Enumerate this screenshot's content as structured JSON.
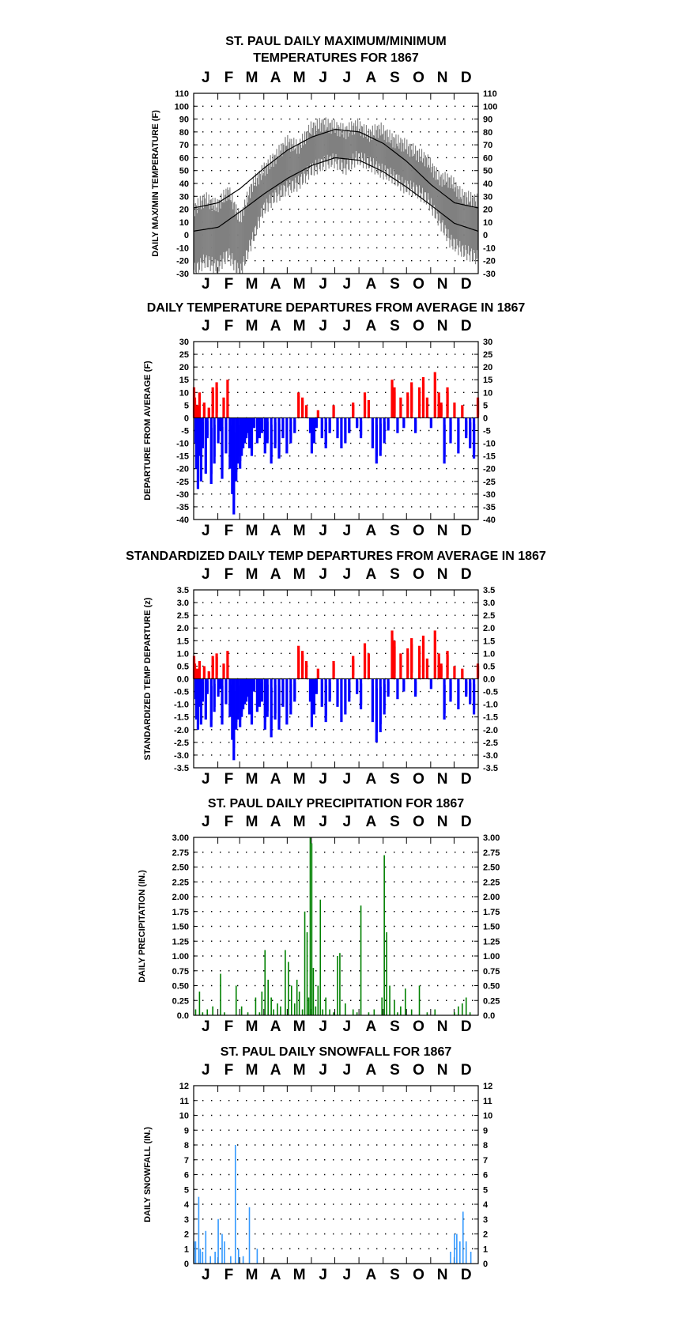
{
  "colors": {
    "maxmin_band": "#808080",
    "normal_lines": "#000000",
    "positive": "#ff0000",
    "negative": "#0000ff",
    "precip": "#008000",
    "snow": "#3399ff",
    "grid_dots": "#000000"
  },
  "months": [
    "J",
    "F",
    "M",
    "A",
    "M",
    "J",
    "J",
    "A",
    "S",
    "O",
    "N",
    "D"
  ],
  "chart_data": [
    {
      "id": "temp",
      "type": "area",
      "title": [
        "ST. PAUL DAILY MAXIMUM/MINIMUM",
        "TEMPERATURES FOR 1867"
      ],
      "ylabel": "DAILY MAX/MIN TEMPERATURE (F)",
      "ylim": [
        -30,
        110
      ],
      "yticks": [
        "110",
        "100",
        "90",
        "80",
        "70",
        "60",
        "50",
        "40",
        "30",
        "20",
        "10",
        "0",
        "-10",
        "-20",
        "-30"
      ],
      "grid": true,
      "series": [
        {
          "role": "normal_high",
          "x_day": [
            1,
            32,
            60,
            91,
            121,
            152,
            182,
            213,
            244,
            274,
            305,
            335,
            365
          ],
          "values": [
            21,
            25,
            36,
            52,
            66,
            76,
            82,
            80,
            71,
            57,
            39,
            25,
            21
          ]
        },
        {
          "role": "normal_low",
          "x_day": [
            1,
            32,
            60,
            91,
            121,
            152,
            182,
            213,
            244,
            274,
            305,
            335,
            365
          ],
          "values": [
            3,
            6,
            18,
            32,
            44,
            54,
            60,
            58,
            49,
            37,
            23,
            9,
            3
          ]
        },
        {
          "role": "observed_high",
          "x_day": [
            1,
            15,
            30,
            45,
            60,
            75,
            90,
            105,
            120,
            135,
            150,
            165,
            180,
            195,
            210,
            225,
            240,
            255,
            270,
            285,
            300,
            315,
            330,
            345,
            365
          ],
          "values": [
            20,
            28,
            22,
            34,
            12,
            38,
            50,
            60,
            72,
            68,
            82,
            86,
            84,
            80,
            85,
            78,
            82,
            74,
            70,
            64,
            58,
            44,
            42,
            30,
            26
          ]
        },
        {
          "role": "observed_low",
          "x_day": [
            1,
            15,
            30,
            45,
            60,
            75,
            90,
            105,
            120,
            135,
            150,
            165,
            180,
            195,
            210,
            225,
            240,
            255,
            270,
            285,
            300,
            315,
            330,
            345,
            365
          ],
          "values": [
            -28,
            -20,
            -25,
            -15,
            -30,
            -5,
            20,
            30,
            36,
            40,
            50,
            55,
            58,
            52,
            60,
            56,
            50,
            46,
            38,
            35,
            28,
            12,
            -5,
            -12,
            -18
          ]
        }
      ]
    },
    {
      "id": "depart",
      "type": "bar",
      "title": [
        "DAILY TEMPERATURE DEPARTURES FROM AVERAGE IN 1867"
      ],
      "ylabel": "DEPARTURE FROM AVERAGE (F)",
      "ylim": [
        -40,
        30
      ],
      "yticks": [
        "30",
        "25",
        "20",
        "15",
        "10",
        "5",
        "0",
        "-5",
        "-10",
        "-15",
        "-20",
        "-25",
        "-30",
        "-35",
        "-40"
      ],
      "grid": true,
      "days": [
        1,
        2,
        3,
        4,
        5,
        6,
        7,
        8,
        10,
        12,
        14,
        16,
        18,
        20,
        23,
        25,
        27,
        30,
        32,
        34,
        37,
        39,
        42,
        44,
        47,
        50,
        52,
        55,
        57,
        60,
        62,
        64,
        66,
        68,
        70,
        72,
        75,
        78,
        82,
        85,
        88,
        92,
        95,
        100,
        105,
        110,
        115,
        120,
        125,
        130,
        135,
        140,
        145,
        150,
        152,
        155,
        158,
        160,
        165,
        170,
        175,
        180,
        185,
        190,
        195,
        200,
        205,
        210,
        215,
        220,
        225,
        230,
        235,
        240,
        245,
        250,
        255,
        258,
        262,
        266,
        270,
        275,
        280,
        285,
        290,
        295,
        300,
        305,
        310,
        315,
        318,
        322,
        326,
        330,
        335,
        340,
        345,
        350,
        355,
        360,
        365
      ],
      "values": [
        12,
        8,
        -10,
        -20,
        5,
        -28,
        -15,
        10,
        -25,
        -12,
        6,
        -22,
        -8,
        4,
        -26,
        12,
        -18,
        14,
        -10,
        -5,
        -24,
        8,
        -14,
        15,
        -20,
        -30,
        -38,
        -25,
        -18,
        -20,
        -15,
        -12,
        -10,
        -8,
        -6,
        -12,
        -15,
        -4,
        -10,
        -8,
        -6,
        -14,
        -10,
        -18,
        -12,
        -16,
        -8,
        -14,
        -10,
        -6,
        10,
        8,
        5,
        -6,
        -14,
        -10,
        -4,
        3,
        -8,
        -12,
        -6,
        5,
        -8,
        -12,
        -10,
        -6,
        6,
        -4,
        -8,
        10,
        7,
        -12,
        -18,
        -15,
        -10,
        -5,
        15,
        12,
        -6,
        8,
        -4,
        10,
        14,
        -6,
        12,
        16,
        8,
        -4,
        18,
        10,
        6,
        -18,
        12,
        -10,
        6,
        -14,
        5,
        -8,
        -12,
        -16,
        8
      ],
      "positive_color": "#ff0000",
      "negative_color": "#0000ff"
    },
    {
      "id": "stdz",
      "type": "bar",
      "title": [
        "STANDARDIZED DAILY TEMP DEPARTURES FROM AVERAGE IN 1867"
      ],
      "ylabel": "STANDARDIZED TEMP DEPARTURE (z)",
      "ylim": [
        -3.5,
        3.5
      ],
      "yticks": [
        "3.5",
        "3.0",
        "2.5",
        "2.0",
        "1.5",
        "1.0",
        "0.5",
        "0.0",
        "-0.5",
        "-1.0",
        "-1.5",
        "-2.0",
        "-2.5",
        "-3.0",
        "-3.5"
      ],
      "grid": true,
      "days": [
        1,
        2,
        3,
        4,
        5,
        6,
        7,
        8,
        10,
        12,
        14,
        16,
        18,
        20,
        23,
        25,
        27,
        30,
        32,
        34,
        37,
        39,
        42,
        44,
        47,
        50,
        52,
        55,
        57,
        60,
        62,
        64,
        66,
        68,
        70,
        72,
        75,
        78,
        82,
        85,
        88,
        92,
        95,
        100,
        105,
        110,
        115,
        120,
        125,
        130,
        135,
        140,
        145,
        150,
        152,
        155,
        158,
        160,
        165,
        170,
        175,
        180,
        185,
        190,
        195,
        200,
        205,
        210,
        215,
        220,
        225,
        230,
        235,
        240,
        245,
        250,
        255,
        258,
        262,
        266,
        270,
        275,
        280,
        285,
        290,
        295,
        300,
        305,
        310,
        315,
        318,
        322,
        326,
        330,
        335,
        340,
        345,
        350,
        355,
        360,
        365
      ],
      "values": [
        0.9,
        0.6,
        -0.8,
        -1.6,
        0.4,
        -2.0,
        -1.1,
        0.7,
        -1.8,
        -0.9,
        0.5,
        -1.6,
        -0.6,
        0.3,
        -1.9,
        0.9,
        -1.3,
        1.0,
        -0.7,
        -0.4,
        -1.8,
        0.6,
        -1.0,
        1.1,
        -1.5,
        -2.4,
        -3.2,
        -2.0,
        -1.6,
        -1.9,
        -1.5,
        -1.2,
        -1.0,
        -0.9,
        -0.7,
        -1.4,
        -1.8,
        -0.5,
        -1.3,
        -1.1,
        -0.9,
        -2.0,
        -1.5,
        -2.3,
        -1.6,
        -2.0,
        -1.1,
        -1.8,
        -1.4,
        -0.9,
        1.3,
        1.1,
        0.7,
        -0.9,
        -1.9,
        -1.4,
        -0.6,
        0.4,
        -1.1,
        -1.7,
        -0.9,
        0.7,
        -1.1,
        -1.7,
        -1.4,
        -0.9,
        0.9,
        -0.6,
        -1.2,
        1.4,
        1.0,
        -1.7,
        -2.5,
        -2.1,
        -1.4,
        -0.7,
        1.9,
        1.5,
        -0.8,
        1.0,
        -0.5,
        1.2,
        1.6,
        -0.7,
        1.3,
        1.7,
        0.8,
        -0.4,
        1.9,
        1.0,
        0.6,
        -1.6,
        1.1,
        -0.9,
        0.5,
        -1.2,
        0.4,
        -0.7,
        -1.0,
        -1.4,
        0.6
      ],
      "positive_color": "#ff0000",
      "negative_color": "#0000ff"
    },
    {
      "id": "precip",
      "type": "bar",
      "title": [
        "ST. PAUL DAILY PRECIPITATION FOR 1867"
      ],
      "ylabel": "DAILY PRECIPITATION (IN.)",
      "ylim": [
        0,
        3
      ],
      "yticks": [
        "3.00",
        "2.75",
        "2.50",
        "2.25",
        "2.00",
        "1.75",
        "1.50",
        "1.25",
        "1.00",
        "0.75",
        "0.50",
        "0.25",
        "0.0"
      ],
      "grid": true,
      "days": [
        3,
        8,
        12,
        18,
        25,
        35,
        40,
        55,
        62,
        70,
        80,
        85,
        88,
        92,
        96,
        100,
        103,
        108,
        112,
        118,
        122,
        126,
        130,
        133,
        136,
        140,
        143,
        146,
        148,
        150,
        152,
        154,
        157,
        160,
        163,
        166,
        170,
        175,
        180,
        185,
        188,
        195,
        205,
        210,
        215,
        225,
        232,
        242,
        245,
        248,
        252,
        258,
        262,
        266,
        272,
        280,
        290,
        300,
        310,
        335,
        340,
        345,
        350,
        355
      ],
      "values": [
        0.1,
        0.4,
        0.05,
        0.1,
        0.15,
        0.7,
        0.05,
        0.5,
        0.15,
        0.05,
        0.3,
        0.05,
        0.4,
        1.1,
        0.6,
        0.3,
        0.1,
        0.2,
        0.15,
        1.1,
        0.9,
        0.5,
        0.2,
        0.6,
        0.4,
        0.1,
        1.75,
        1.4,
        0.3,
        3.0,
        2.9,
        0.8,
        0.15,
        0.5,
        1.95,
        0.1,
        0.3,
        0.1,
        0.05,
        1.0,
        1.05,
        0.2,
        0.1,
        0.05,
        1.85,
        0.05,
        0.1,
        0.3,
        2.7,
        1.4,
        0.5,
        0.25,
        0.05,
        0.15,
        0.45,
        0.1,
        0.5,
        0.05,
        0.1,
        0.05,
        0.15,
        0.2,
        0.3,
        0.05
      ],
      "color": "#008000"
    },
    {
      "id": "snow",
      "type": "bar",
      "title": [
        "ST. PAUL DAILY SNOWFALL FOR 1867"
      ],
      "ylabel": "DAILY SNOWFALL (IN.)",
      "ylim": [
        0,
        12
      ],
      "yticks": [
        "12",
        "11",
        "10",
        "9",
        "8",
        "7",
        "6",
        "5",
        "4",
        "3",
        "2",
        "1",
        "0"
      ],
      "grid": true,
      "days": [
        1,
        3,
        7,
        9,
        12,
        16,
        22,
        28,
        32,
        37,
        40,
        48,
        54,
        58,
        64,
        72,
        82,
        330,
        335,
        338,
        342,
        346,
        350,
        356
      ],
      "values": [
        1.5,
        1.5,
        4.5,
        1.0,
        0.8,
        2.2,
        0.5,
        0.8,
        3.0,
        2.0,
        1.5,
        0.5,
        8.0,
        1.0,
        0.5,
        3.8,
        1.0,
        0.8,
        2.0,
        2.0,
        1.5,
        3.5,
        1.5,
        0.8
      ],
      "color": "#3399ff"
    }
  ]
}
